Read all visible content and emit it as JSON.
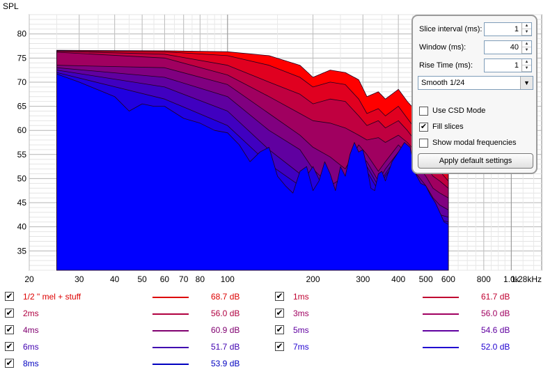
{
  "chart_data": {
    "type": "area",
    "ylabel": "SPL",
    "xscale": "log",
    "xlim": [
      20,
      1280
    ],
    "ylim": [
      31,
      84
    ],
    "x_ticks": [
      {
        "v": 20,
        "label": "20"
      },
      {
        "v": 30,
        "label": "30"
      },
      {
        "v": 40,
        "label": "40"
      },
      {
        "v": 50,
        "label": "50"
      },
      {
        "v": 60,
        "label": "60"
      },
      {
        "v": 70,
        "label": "70"
      },
      {
        "v": 80,
        "label": "80"
      },
      {
        "v": 100,
        "label": "100"
      },
      {
        "v": 200,
        "label": "200"
      },
      {
        "v": 300,
        "label": "300"
      },
      {
        "v": 400,
        "label": "400"
      },
      {
        "v": 500,
        "label": "500"
      },
      {
        "v": 600,
        "label": "600"
      },
      {
        "v": 800,
        "label": "800"
      },
      {
        "v": 1000,
        "label": "1.0k"
      },
      {
        "v": 1280,
        "label": "1.28kHz"
      }
    ],
    "y_ticks": [
      35,
      40,
      45,
      50,
      55,
      60,
      65,
      70,
      75,
      80
    ],
    "series": [
      {
        "name": "1/2 \" mel + stuff",
        "color": "#ff0000",
        "x": [
          25,
          60,
          100,
          140,
          180,
          200,
          230,
          260,
          290,
          310,
          340,
          360,
          400,
          430,
          470,
          500,
          530,
          560,
          600
        ],
        "y": [
          76.6,
          76.5,
          76.3,
          75.5,
          73.5,
          71.0,
          72.5,
          72.0,
          70.5,
          67.0,
          68.0,
          66.5,
          68.5,
          66.0,
          63.5,
          60.5,
          58.5,
          56.0,
          52.0
        ]
      },
      {
        "name": "1ms",
        "color": "#e00020",
        "x": [
          25,
          60,
          100,
          140,
          180,
          200,
          230,
          260,
          290,
          310,
          340,
          360,
          400,
          430,
          470,
          500,
          530,
          560,
          600
        ],
        "y": [
          76.5,
          76.3,
          75.5,
          73.5,
          71.0,
          69.0,
          70.0,
          69.5,
          66.5,
          63.5,
          64.5,
          63.0,
          65.0,
          62.5,
          59.5,
          57.0,
          55.0,
          53.5,
          51.0
        ]
      },
      {
        "name": "2ms",
        "color": "#c00040",
        "x": [
          25,
          60,
          100,
          140,
          180,
          200,
          230,
          260,
          290,
          310,
          340,
          360,
          400,
          430,
          470,
          500,
          530,
          560,
          600
        ],
        "y": [
          76.4,
          75.8,
          73.5,
          70.0,
          67.5,
          65.5,
          66.5,
          66.0,
          63.0,
          61.0,
          62.0,
          60.5,
          62.0,
          60.0,
          57.0,
          54.5,
          52.5,
          51.5,
          49.5
        ]
      },
      {
        "name": "3ms",
        "color": "#a00060",
        "x": [
          25,
          60,
          100,
          140,
          180,
          200,
          230,
          260,
          290,
          310,
          340,
          360,
          400,
          430,
          470,
          500,
          530,
          560,
          600
        ],
        "y": [
          76.2,
          75.0,
          71.5,
          67.0,
          63.5,
          62.0,
          61.5,
          60.5,
          59.0,
          58.0,
          58.5,
          57.5,
          59.0,
          57.5,
          55.0,
          52.5,
          50.5,
          49.5,
          48.0
        ]
      },
      {
        "name": "4ms",
        "color": "#800080",
        "x": [
          25,
          60,
          100,
          140,
          180,
          200,
          230,
          260,
          290,
          310,
          340,
          360,
          400,
          430,
          470,
          500,
          530,
          560,
          600
        ],
        "y": [
          73.5,
          73.0,
          69.5,
          63.5,
          59.0,
          56.5,
          54.5,
          52.0,
          57.0,
          55.0,
          51.5,
          53.5,
          57.0,
          55.0,
          52.5,
          50.5,
          48.0,
          47.0,
          46.0
        ]
      },
      {
        "name": "5ms",
        "color": "#6000a0",
        "x": [
          25,
          60,
          100,
          140,
          180,
          200,
          230,
          260,
          290,
          310,
          340,
          360,
          400,
          430,
          470,
          500,
          530,
          560,
          600
        ],
        "y": [
          73.0,
          71.0,
          67.0,
          60.0,
          56.0,
          52.0,
          48.5,
          50.5,
          55.0,
          53.5,
          49.5,
          52.0,
          55.5,
          53.0,
          50.5,
          48.5,
          46.0,
          44.5,
          43.5
        ]
      },
      {
        "name": "6ms",
        "color": "#4000c0",
        "x": [
          25,
          60,
          100,
          140,
          180,
          200,
          230,
          260,
          290,
          310,
          340,
          360,
          400,
          430,
          470,
          500,
          530,
          560,
          600
        ],
        "y": [
          72.5,
          69.0,
          64.0,
          56.0,
          51.0,
          48.0,
          46.0,
          49.0,
          54.5,
          52.5,
          48.5,
          51.0,
          55.0,
          52.0,
          49.5,
          47.0,
          44.5,
          42.5,
          42.0
        ]
      },
      {
        "name": "7ms",
        "color": "#2000e0",
        "x": [
          25,
          60,
          100,
          140,
          180,
          200,
          230,
          260,
          290,
          310,
          340,
          360,
          400,
          430,
          470,
          500,
          530,
          560,
          600
        ],
        "y": [
          72.0,
          66.5,
          61.0,
          53.0,
          48.5,
          52.5,
          45.0,
          48.5,
          55.0,
          51.5,
          47.5,
          50.5,
          54.5,
          51.5,
          48.5,
          46.0,
          43.5,
          41.5,
          41.0
        ]
      },
      {
        "name": "8ms",
        "color": "#0000ff",
        "x": [
          25,
          30,
          40,
          45,
          50,
          55,
          60,
          70,
          80,
          90,
          100,
          110,
          120,
          130,
          140,
          150,
          160,
          170,
          180,
          190,
          200,
          210,
          220,
          230,
          240,
          250,
          260,
          270,
          280,
          290,
          300,
          310,
          320,
          330,
          340,
          350,
          360,
          380,
          400,
          420,
          440,
          460,
          480,
          500,
          520,
          540,
          560,
          580,
          600
        ],
        "y": [
          71.7,
          70.0,
          67.0,
          64.0,
          65.5,
          65.0,
          65.0,
          62.5,
          61.5,
          60.0,
          59.5,
          57.0,
          53.5,
          55.5,
          56.5,
          50.5,
          48.5,
          47.0,
          51.5,
          52.5,
          47.5,
          49.5,
          53.5,
          51.0,
          47.5,
          52.5,
          50.5,
          55.0,
          57.5,
          55.5,
          56.0,
          52.5,
          48.0,
          47.5,
          51.0,
          51.5,
          49.5,
          53.5,
          55.5,
          57.5,
          56.5,
          51.0,
          49.0,
          48.5,
          46.5,
          45.0,
          43.0,
          41.0,
          40.5
        ]
      }
    ]
  },
  "settings": {
    "slice_interval_label": "Slice interval (ms):",
    "slice_interval_value": "1",
    "window_label": "Window (ms):",
    "window_value": "40",
    "rise_time_label": "Rise Time (ms):",
    "rise_time_value": "1",
    "smoothing_value": "Smooth 1/24",
    "use_csd_label": "Use CSD Mode",
    "use_csd_checked": false,
    "fill_slices_label": "Fill slices",
    "fill_slices_checked": true,
    "show_modal_label": "Show modal frequencies",
    "show_modal_checked": false,
    "apply_button_label": "Apply default settings"
  },
  "legend": [
    {
      "name": "1/2 \" mel + stuff",
      "db": "68.7 dB",
      "color": "#dd0000",
      "checked": true
    },
    {
      "name": "1ms",
      "db": "61.7 dB",
      "color": "#c00030",
      "checked": true
    },
    {
      "name": "2ms",
      "db": "56.0 dB",
      "color": "#b00040",
      "checked": true
    },
    {
      "name": "3ms",
      "db": "56.0 dB",
      "color": "#a00060",
      "checked": true
    },
    {
      "name": "4ms",
      "db": "60.9 dB",
      "color": "#800070",
      "checked": true
    },
    {
      "name": "5ms",
      "db": "54.6 dB",
      "color": "#6000a0",
      "checked": true
    },
    {
      "name": "6ms",
      "db": "51.7 dB",
      "color": "#4000b0",
      "checked": true
    },
    {
      "name": "7ms",
      "db": "52.0 dB",
      "color": "#2000d0",
      "checked": true
    },
    {
      "name": "8ms",
      "db": "53.9 dB",
      "color": "#0000c0",
      "checked": true
    }
  ]
}
